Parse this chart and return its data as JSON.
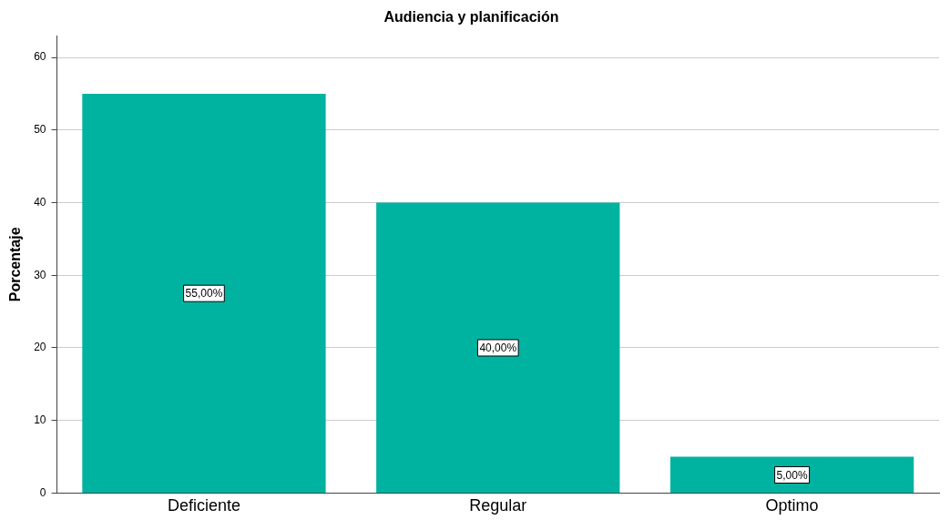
{
  "chart_data": {
    "type": "bar",
    "title": "Audiencia y planificación",
    "ylabel": "Porcentaje",
    "categories": [
      "Deficiente",
      "Regular",
      "Optimo"
    ],
    "values": [
      55,
      40,
      5
    ],
    "color": "#00b3a0",
    "value_labels": [
      "55,00%",
      "40,00%",
      "5,00%"
    ],
    "ylim": [
      0,
      63
    ],
    "yticks": [
      0,
      10,
      20,
      30,
      40,
      50,
      60
    ],
    "grid": "y",
    "legend": false
  }
}
